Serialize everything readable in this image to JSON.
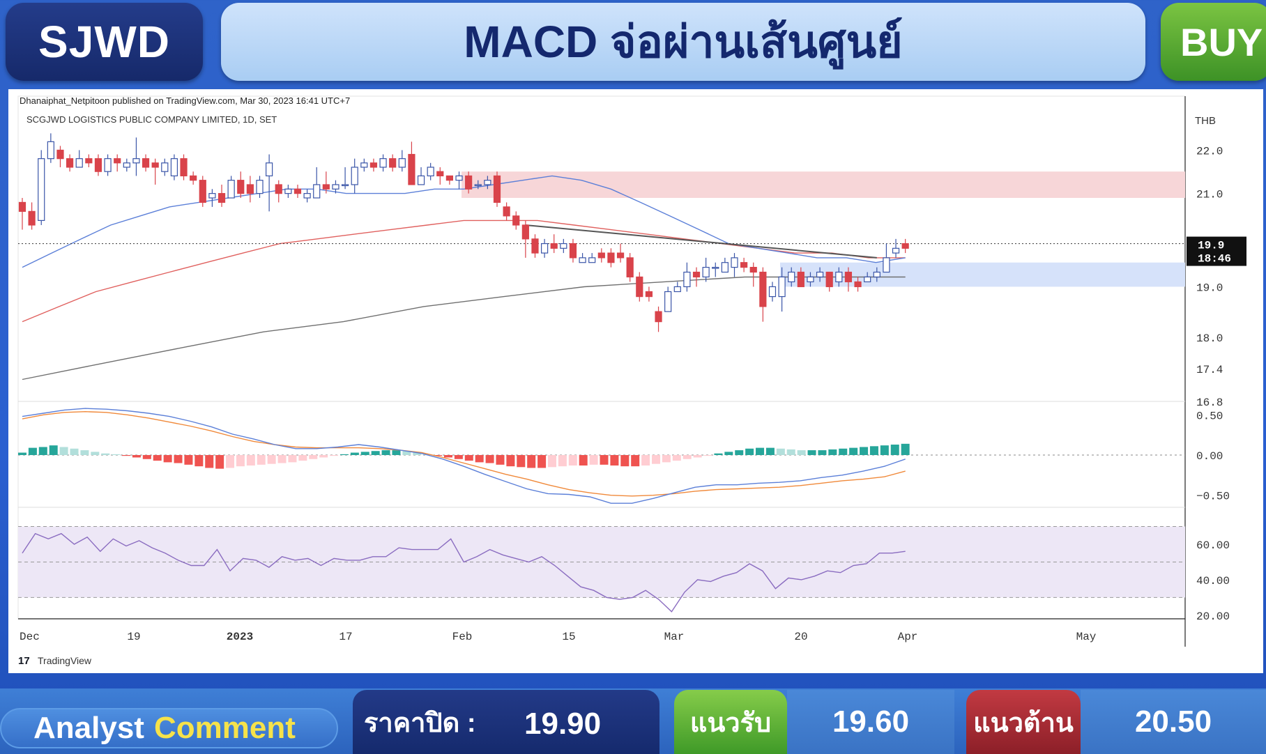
{
  "header": {
    "ticker": "SJWD",
    "title": "MACD จ่อผ่านเส้นศูนย์",
    "signal": "BUY"
  },
  "chart_meta": {
    "published_by": "Dhanaiphat_Netpitoon published on TradingView.com, Mar 30, 2023 16:41 UTC+7",
    "symbol_line": "SCGJWD LOGISTICS PUBLIC COMPANY LIMITED, 1D, SET",
    "currency": "THB",
    "brand": "TradingView",
    "price_label": "19.9",
    "countdown_label": "18:46"
  },
  "footer": {
    "analyst_word1": "Analyst",
    "analyst_word2": "Comment",
    "close_label": "ราคาปิด :",
    "close_value": "19.90",
    "support_label": "แนวรับ",
    "support_value": "19.60",
    "resistance_label": "แนวต้าน",
    "resistance_value": "20.50"
  },
  "colors": {
    "up": "#ffffff",
    "up_border": "#3a55a8",
    "down": "#d9434a",
    "ma_blue": "#5b7fd8",
    "ma_red": "#e0605e",
    "ma_grey": "#6f6f6f",
    "macd_line": "#5b7fd8",
    "signal_line": "#f0893a",
    "rsi_line": "#8a6cc0"
  },
  "chart_data": [
    {
      "type": "candlestick",
      "panel": "price",
      "x_tick_labels": [
        "Dec",
        "19",
        "2023",
        "17",
        "Feb",
        "15",
        "Mar",
        "20",
        "Apr",
        "May"
      ],
      "y_ticks": [
        22.0,
        21.0,
        19.0,
        18.0,
        17.4,
        16.8
      ],
      "y_tick_labels": [
        "22.0",
        "21.0",
        "19.0",
        "18.0",
        "17.4",
        "16.8"
      ],
      "ylim": [
        16.8,
        23.0
      ],
      "log_scale": true,
      "last_price": 19.9,
      "resistance_zone": [
        20.9,
        21.5
      ],
      "support_zone": [
        19.0,
        19.5
      ],
      "candles": [
        [
          20.8,
          20.6,
          20.2,
          20.9
        ],
        [
          20.6,
          20.3,
          20.2,
          20.8
        ],
        [
          20.4,
          21.8,
          20.3,
          22.0
        ],
        [
          21.8,
          22.2,
          21.7,
          22.4
        ],
        [
          22.0,
          21.8,
          21.6,
          22.1
        ],
        [
          21.8,
          21.6,
          21.5,
          21.9
        ],
        [
          21.6,
          21.8,
          21.6,
          22.0
        ],
        [
          21.8,
          21.7,
          21.6,
          21.9
        ],
        [
          21.8,
          21.5,
          21.4,
          21.9
        ],
        [
          21.5,
          21.8,
          21.4,
          21.9
        ],
        [
          21.8,
          21.7,
          21.5,
          21.9
        ],
        [
          21.6,
          21.7,
          21.5,
          21.8
        ],
        [
          21.7,
          21.8,
          21.4,
          22.3
        ],
        [
          21.8,
          21.6,
          21.5,
          21.9
        ],
        [
          21.7,
          21.6,
          21.2,
          21.8
        ],
        [
          21.5,
          21.7,
          21.4,
          21.8
        ],
        [
          21.4,
          21.8,
          21.3,
          21.9
        ],
        [
          21.8,
          21.4,
          21.3,
          21.9
        ],
        [
          21.4,
          21.3,
          21.2,
          21.5
        ],
        [
          21.3,
          20.8,
          20.7,
          21.4
        ],
        [
          20.9,
          21.0,
          20.7,
          21.1
        ],
        [
          21.0,
          20.8,
          20.7,
          21.2
        ],
        [
          20.9,
          21.3,
          20.9,
          21.4
        ],
        [
          21.3,
          21.0,
          20.9,
          21.5
        ],
        [
          21.2,
          21.0,
          20.8,
          21.4
        ],
        [
          21.0,
          21.3,
          20.9,
          21.4
        ],
        [
          21.4,
          21.7,
          20.6,
          21.9
        ],
        [
          21.2,
          21.0,
          20.8,
          21.3
        ],
        [
          21.0,
          21.1,
          20.9,
          21.2
        ],
        [
          21.1,
          21.0,
          20.9,
          21.2
        ],
        [
          20.9,
          21.0,
          20.8,
          21.1
        ],
        [
          20.9,
          21.2,
          20.9,
          21.6
        ],
        [
          21.2,
          21.1,
          21.0,
          21.5
        ],
        [
          21.1,
          21.2,
          21.0,
          21.3
        ],
        [
          21.2,
          21.2,
          21.1,
          21.6
        ],
        [
          21.2,
          21.6,
          21.0,
          21.8
        ],
        [
          21.6,
          21.7,
          21.5,
          21.8
        ],
        [
          21.7,
          21.6,
          21.5,
          21.8
        ],
        [
          21.6,
          21.8,
          21.5,
          21.9
        ],
        [
          21.8,
          21.6,
          21.5,
          21.9
        ],
        [
          21.6,
          21.8,
          21.5,
          22.0
        ],
        [
          21.9,
          21.2,
          21.2,
          22.2
        ],
        [
          21.2,
          21.4,
          21.2,
          21.6
        ],
        [
          21.4,
          21.6,
          21.3,
          21.7
        ],
        [
          21.5,
          21.4,
          21.2,
          21.6
        ],
        [
          21.4,
          21.3,
          21.2,
          21.4
        ],
        [
          21.3,
          21.4,
          21.1,
          21.5
        ],
        [
          21.4,
          21.1,
          21.0,
          21.5
        ],
        [
          21.2,
          21.2,
          21.1,
          21.3
        ],
        [
          21.2,
          21.3,
          21.1,
          21.4
        ],
        [
          21.4,
          20.8,
          20.7,
          21.5
        ],
        [
          20.7,
          20.5,
          20.4,
          20.8
        ],
        [
          20.5,
          20.3,
          20.2,
          20.6
        ],
        [
          20.3,
          20.0,
          19.6,
          20.4
        ],
        [
          20.0,
          19.7,
          19.6,
          20.1
        ],
        [
          19.7,
          19.9,
          19.6,
          20.0
        ],
        [
          19.9,
          19.8,
          19.7,
          20.1
        ],
        [
          19.8,
          19.9,
          19.7,
          20.0
        ],
        [
          19.9,
          19.6,
          19.5,
          20.0
        ],
        [
          19.5,
          19.6,
          19.5,
          19.7
        ],
        [
          19.5,
          19.6,
          19.5,
          19.7
        ],
        [
          19.7,
          19.6,
          19.5,
          19.8
        ],
        [
          19.7,
          19.5,
          19.4,
          19.8
        ],
        [
          19.7,
          19.6,
          19.5,
          19.9
        ],
        [
          19.6,
          19.2,
          19.1,
          19.7
        ],
        [
          19.2,
          18.8,
          18.7,
          19.3
        ],
        [
          18.9,
          18.8,
          18.7,
          19.0
        ],
        [
          18.5,
          18.3,
          18.1,
          18.6
        ],
        [
          18.5,
          18.9,
          18.5,
          19.0
        ],
        [
          18.9,
          19.0,
          18.9,
          19.1
        ],
        [
          19.0,
          19.3,
          18.9,
          19.5
        ],
        [
          19.3,
          19.2,
          19.0,
          19.4
        ],
        [
          19.2,
          19.4,
          19.1,
          19.6
        ],
        [
          19.4,
          19.4,
          19.2,
          19.5
        ],
        [
          19.3,
          19.5,
          19.3,
          19.6
        ],
        [
          19.4,
          19.6,
          19.2,
          19.7
        ],
        [
          19.5,
          19.4,
          19.3,
          19.6
        ],
        [
          19.4,
          19.3,
          19.0,
          19.5
        ],
        [
          19.3,
          18.6,
          18.3,
          19.4
        ],
        [
          18.8,
          19.0,
          18.7,
          19.1
        ],
        [
          18.8,
          19.2,
          18.5,
          19.4
        ],
        [
          19.1,
          19.3,
          19.0,
          19.4
        ],
        [
          19.3,
          19.0,
          19.0,
          19.4
        ],
        [
          19.1,
          19.2,
          19.0,
          19.3
        ],
        [
          19.2,
          19.3,
          19.1,
          19.4
        ],
        [
          19.3,
          19.0,
          18.9,
          19.3
        ],
        [
          19.1,
          19.3,
          19.0,
          19.4
        ],
        [
          19.3,
          19.1,
          18.9,
          19.4
        ],
        [
          19.1,
          19.0,
          18.9,
          19.2
        ],
        [
          19.1,
          19.2,
          19.1,
          19.3
        ],
        [
          19.2,
          19.3,
          19.1,
          19.4
        ],
        [
          19.3,
          19.6,
          19.3,
          19.9
        ],
        [
          19.7,
          19.8,
          19.6,
          20.0
        ],
        [
          19.9,
          19.8,
          19.7,
          20.0
        ]
      ],
      "ma_fast": [
        19.4,
        19.7,
        20.0,
        20.3,
        20.5,
        20.7,
        20.8,
        20.9,
        21.0,
        21.1,
        21.1,
        21.0,
        21.0,
        21.0,
        21.1,
        21.1,
        21.2,
        21.3,
        21.4,
        21.3,
        21.1,
        20.8,
        20.5,
        20.2,
        19.9,
        19.8,
        19.7,
        19.6,
        19.6,
        19.5,
        19.6
      ],
      "ma_mid": [
        18.3,
        18.6,
        18.9,
        19.1,
        19.3,
        19.5,
        19.7,
        19.9,
        20.0,
        20.1,
        20.2,
        20.3,
        20.4,
        20.4,
        20.4,
        20.3,
        20.2,
        20.1,
        20.0,
        19.9,
        19.8,
        19.7,
        19.7,
        19.6,
        19.6
      ],
      "ma_slow": [
        17.2,
        17.5,
        17.8,
        18.1,
        18.3,
        18.6,
        18.8,
        19.0,
        19.1,
        19.2,
        19.2,
        19.2
      ],
      "trendline": [
        [
          53,
          20.3
        ],
        [
          90,
          19.6
        ]
      ]
    },
    {
      "type": "bar+line",
      "panel": "macd",
      "y_tick_labels": [
        "0.50",
        "0.00",
        "−0.50"
      ],
      "ylim": [
        -0.65,
        0.65
      ],
      "histogram": [
        0.03,
        0.09,
        0.1,
        0.12,
        0.1,
        0.08,
        0.06,
        0.04,
        0.02,
        0.01,
        -0.01,
        -0.03,
        -0.05,
        -0.07,
        -0.09,
        -0.1,
        -0.12,
        -0.14,
        -0.16,
        -0.17,
        -0.16,
        -0.14,
        -0.13,
        -0.12,
        -0.11,
        -0.1,
        -0.09,
        -0.07,
        -0.05,
        -0.03,
        -0.01,
        0.01,
        0.03,
        0.04,
        0.05,
        0.06,
        0.06,
        0.05,
        0.03,
        0.01,
        -0.01,
        -0.03,
        -0.05,
        -0.07,
        -0.09,
        -0.1,
        -0.12,
        -0.14,
        -0.15,
        -0.16,
        -0.16,
        -0.15,
        -0.14,
        -0.13,
        -0.13,
        -0.12,
        -0.12,
        -0.13,
        -0.14,
        -0.14,
        -0.13,
        -0.11,
        -0.09,
        -0.07,
        -0.05,
        -0.03,
        -0.01,
        0.02,
        0.04,
        0.06,
        0.08,
        0.09,
        0.09,
        0.08,
        0.07,
        0.06,
        0.06,
        0.06,
        0.07,
        0.08,
        0.09,
        0.1,
        0.11,
        0.12,
        0.13,
        0.14
      ],
      "macd": [
        0.48,
        0.52,
        0.56,
        0.58,
        0.57,
        0.55,
        0.52,
        0.48,
        0.42,
        0.35,
        0.26,
        0.2,
        0.13,
        0.08,
        0.08,
        0.1,
        0.13,
        0.1,
        0.06,
        0.02,
        -0.05,
        -0.14,
        -0.24,
        -0.33,
        -0.42,
        -0.48,
        -0.49,
        -0.52,
        -0.6,
        -0.6,
        -0.54,
        -0.47,
        -0.4,
        -0.37,
        -0.37,
        -0.35,
        -0.34,
        -0.32,
        -0.28,
        -0.25,
        -0.2,
        -0.14,
        -0.05
      ],
      "signal": [
        0.45,
        0.5,
        0.53,
        0.54,
        0.53,
        0.5,
        0.46,
        0.41,
        0.36,
        0.3,
        0.23,
        0.17,
        0.13,
        0.1,
        0.09,
        0.09,
        0.09,
        0.08,
        0.06,
        0.03,
        -0.03,
        -0.1,
        -0.17,
        -0.24,
        -0.3,
        -0.37,
        -0.43,
        -0.47,
        -0.5,
        -0.51,
        -0.5,
        -0.48,
        -0.45,
        -0.43,
        -0.42,
        -0.41,
        -0.4,
        -0.38,
        -0.35,
        -0.32,
        -0.3,
        -0.27,
        -0.2
      ]
    },
    {
      "type": "line",
      "panel": "rsi",
      "y_tick_labels": [
        "60.00",
        "40.00",
        "20.00"
      ],
      "ylim": [
        18,
        80
      ],
      "bands": [
        30,
        50,
        70
      ],
      "rsi": [
        55,
        66,
        63,
        66,
        60,
        64,
        56,
        63,
        59,
        62,
        58,
        55,
        51,
        48,
        48,
        57,
        45,
        52,
        51,
        47,
        53,
        51,
        52,
        48,
        52,
        51,
        51,
        53,
        53,
        58,
        57,
        57,
        57,
        63,
        50,
        53,
        57,
        54,
        52,
        50,
        53,
        48,
        42,
        36,
        34,
        30,
        29,
        30,
        34,
        29,
        22,
        33,
        40,
        39,
        42,
        44,
        49,
        45,
        35,
        41,
        40,
        42,
        45,
        44,
        48,
        49,
        55,
        55,
        56
      ]
    }
  ]
}
